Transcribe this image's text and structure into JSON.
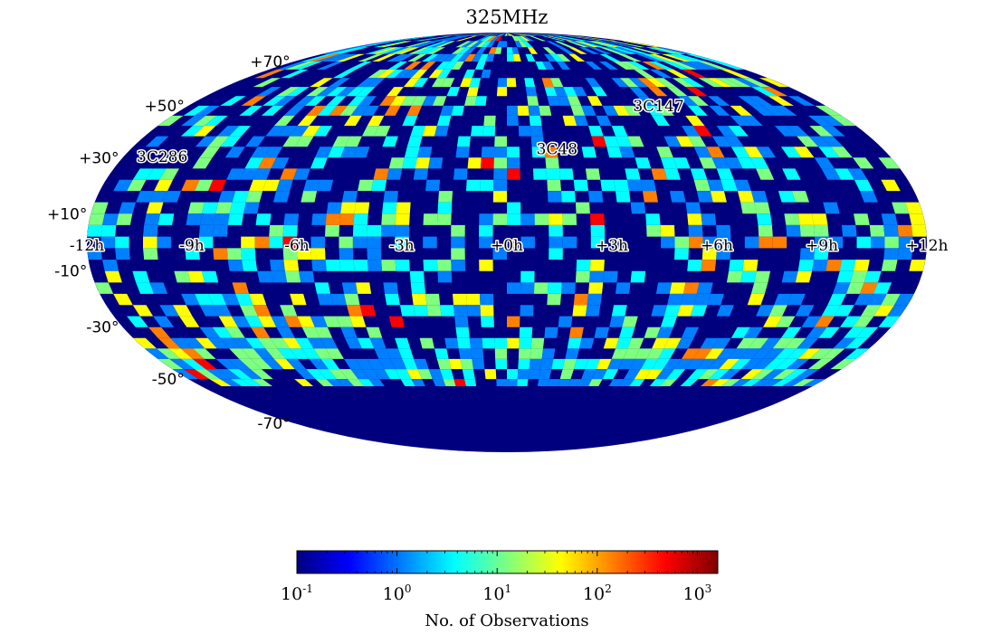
{
  "chart_data": {
    "type": "heatmap",
    "projection": "mollweide",
    "title": "325MHz",
    "x_axis": {
      "quantity": "right ascension",
      "tick_labels": [
        "-12h",
        "-9h",
        "-6h",
        "-3h",
        "+0h",
        "+3h",
        "+6h",
        "+9h",
        "+12h"
      ],
      "tick_values_hours": [
        -12,
        -9,
        -6,
        -3,
        0,
        3,
        6,
        9,
        12
      ]
    },
    "y_axis": {
      "quantity": "declination",
      "tick_labels": [
        "+70°",
        "+50°",
        "+30°",
        "+10°",
        "-10°",
        "-30°",
        "-50°",
        "-70°"
      ],
      "tick_values_deg": [
        70,
        50,
        30,
        10,
        -10,
        -30,
        -50,
        -70
      ]
    },
    "coverage": {
      "unobserved_declination_below_deg": -53,
      "dense_band_declination_deg": [
        -53,
        -36
      ],
      "dense_band_ra_hours": [
        [
          -7.5,
          -4
        ],
        [
          5.5,
          11
        ]
      ]
    },
    "sources": [
      {
        "name": "3C147",
        "ra_hours": 5.7,
        "dec_deg": 49.9
      },
      {
        "name": "3C48",
        "ra_hours": 1.6,
        "dec_deg": 33.2
      },
      {
        "name": "3C286",
        "ra_hours": -10.8,
        "dec_deg": 30.5
      }
    ],
    "colorbar": {
      "label": "No. of Observations",
      "scale": "log",
      "range": [
        0.1,
        1600
      ],
      "colormap": "jet",
      "ticks": [
        {
          "base": "10",
          "exp": "-1",
          "value": 0.1
        },
        {
          "base": "10",
          "exp": "0",
          "value": 1
        },
        {
          "base": "10",
          "exp": "1",
          "value": 10
        },
        {
          "base": "10",
          "exp": "2",
          "value": 100
        },
        {
          "base": "10",
          "exp": "3",
          "value": 1000
        }
      ]
    },
    "background_color": "#00007f",
    "colors": [
      "#00007f",
      "#0000ff",
      "#007fff",
      "#00ffff",
      "#7fff7f",
      "#ffff00",
      "#ff7f00",
      "#ff0000",
      "#7f0000"
    ]
  }
}
